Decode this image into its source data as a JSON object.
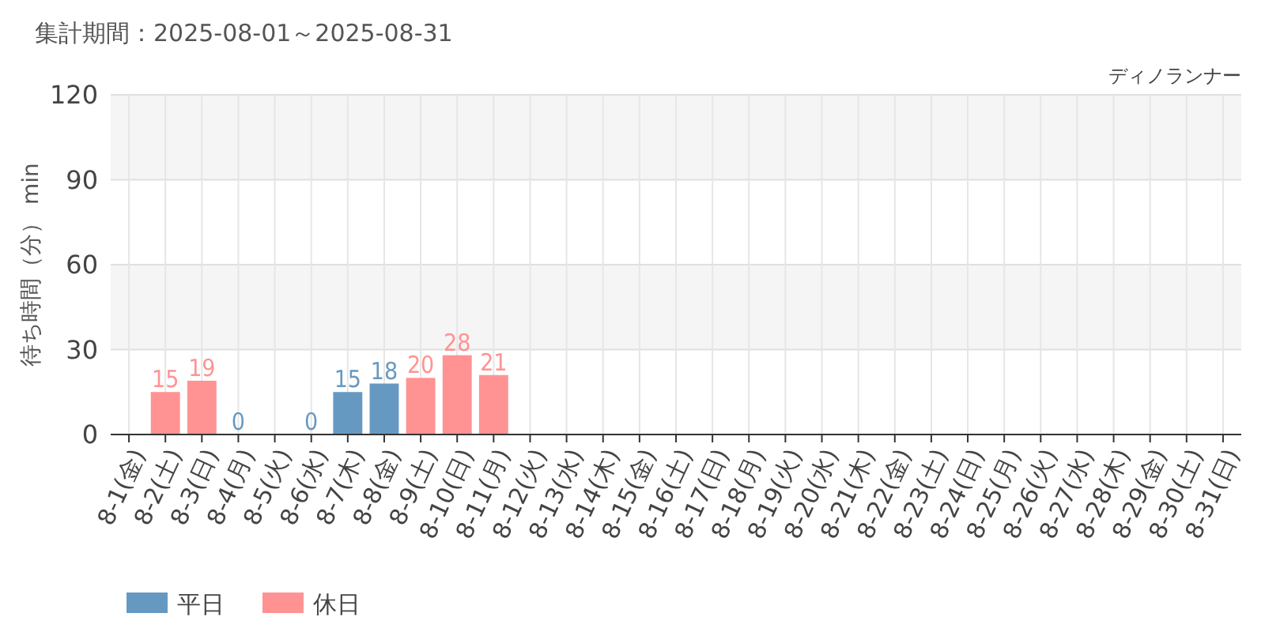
{
  "chart_data": {
    "type": "bar",
    "title": "集計期間：2025-08-01～2025-08-31",
    "subtitle": "ディノランナー",
    "ylabel": "待ち時間（分） min",
    "categories": [
      "8-1(金)",
      "8-2(土)",
      "8-3(日)",
      "8-4(月)",
      "8-5(火)",
      "8-6(水)",
      "8-7(木)",
      "8-8(金)",
      "8-9(土)",
      "8-10(日)",
      "8-11(月)",
      "8-12(火)",
      "8-13(水)",
      "8-14(木)",
      "8-15(金)",
      "8-16(土)",
      "8-17(日)",
      "8-18(月)",
      "8-19(火)",
      "8-20(水)",
      "8-21(木)",
      "8-22(金)",
      "8-23(土)",
      "8-24(日)",
      "8-25(月)",
      "8-26(火)",
      "8-27(水)",
      "8-28(木)",
      "8-29(金)",
      "8-30(土)",
      "8-31(日)"
    ],
    "series": [
      {
        "name": "平日",
        "color": "#6699c2",
        "values": [
          null,
          null,
          null,
          0,
          null,
          0,
          15,
          18,
          null,
          null,
          null,
          null,
          null,
          null,
          null,
          null,
          null,
          null,
          null,
          null,
          null,
          null,
          null,
          null,
          null,
          null,
          null,
          null,
          null,
          null,
          null
        ]
      },
      {
        "name": "休日",
        "color": "#ff9393",
        "values": [
          null,
          15,
          19,
          null,
          null,
          null,
          null,
          null,
          20,
          28,
          21,
          null,
          null,
          null,
          null,
          null,
          null,
          null,
          null,
          null,
          null,
          null,
          null,
          null,
          null,
          null,
          null,
          null,
          null,
          null,
          null
        ]
      }
    ],
    "stacked": true,
    "data_labels": true,
    "ylim": [
      0,
      120
    ],
    "yticks": [
      0,
      30,
      60,
      90,
      120
    ],
    "grid": true,
    "legend": "bottom left"
  }
}
